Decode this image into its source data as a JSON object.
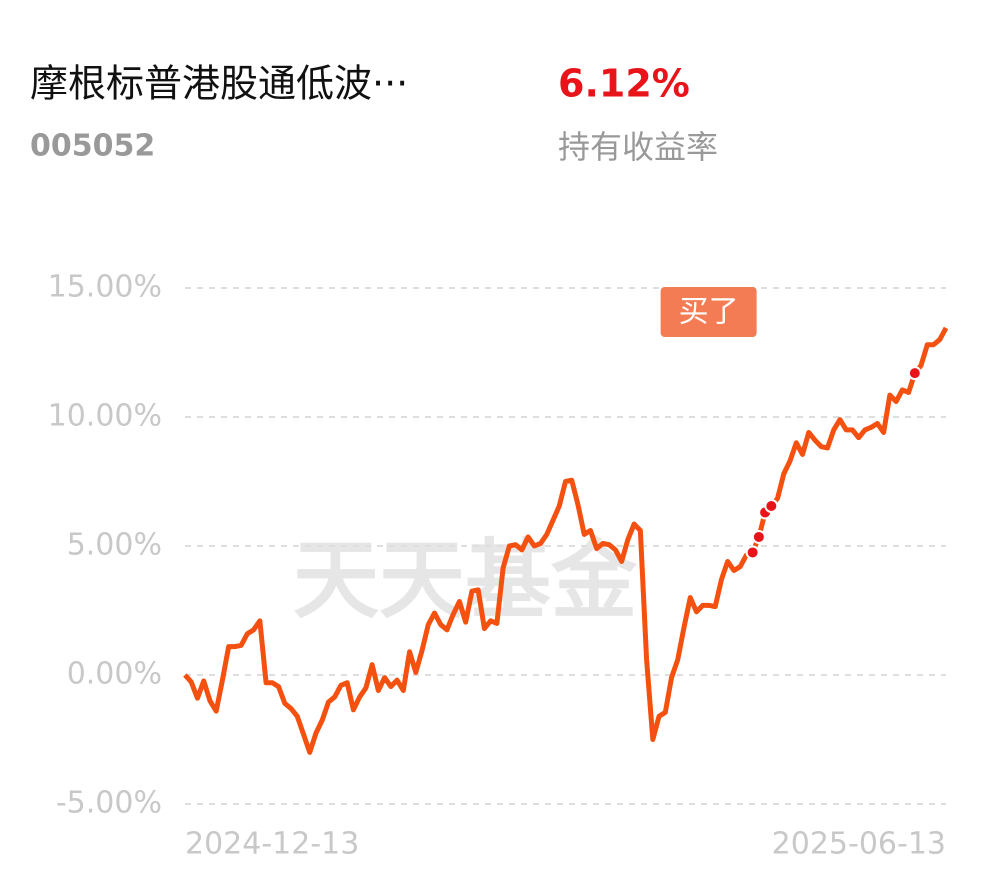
{
  "header": {
    "title": "摩根标普港股通低波···",
    "code": "005052",
    "return": "6.12%",
    "return_label": "持有收益率"
  },
  "chart_data": {
    "type": "line",
    "watermark": "天天基金",
    "annotation": "买了",
    "categories": [
      "2024-12-13",
      null,
      null,
      null,
      null,
      null,
      null,
      null,
      null,
      null,
      null,
      null,
      null,
      null,
      null,
      null,
      null,
      null,
      null,
      null,
      null,
      null,
      null,
      null,
      null,
      null,
      null,
      null,
      null,
      null,
      null,
      null,
      null,
      null,
      null,
      null,
      null,
      null,
      null,
      null,
      null,
      null,
      null,
      null,
      null,
      null,
      null,
      null,
      null,
      null,
      null,
      null,
      null,
      null,
      null,
      null,
      null,
      null,
      null,
      null,
      null,
      null,
      null,
      null,
      null,
      null,
      null,
      null,
      null,
      null,
      null,
      null,
      null,
      null,
      null,
      null,
      null,
      null,
      null,
      null,
      null,
      null,
      null,
      null,
      null,
      null,
      null,
      null,
      null,
      null,
      null,
      null,
      null,
      null,
      null,
      null,
      null,
      null,
      null,
      null,
      null,
      null,
      null,
      null,
      null,
      null,
      null,
      null,
      null,
      null,
      null,
      null,
      null,
      null,
      null,
      null,
      null,
      null,
      null,
      null,
      null,
      null,
      "2025-06-13"
    ],
    "series": [
      {
        "color": "#f4500f",
        "values": [
          0,
          -0.27,
          -0.9,
          -0.23,
          -1.0,
          -1.4,
          -0.2,
          1.1,
          1.1,
          1.15,
          1.6,
          1.75,
          2.1,
          -0.3,
          -0.3,
          -0.45,
          -1.1,
          -1.3,
          -1.6,
          -2.3,
          -3.0,
          -2.25,
          -1.75,
          -1.05,
          -0.85,
          -0.4,
          -0.3,
          -1.35,
          -0.85,
          -0.5,
          0.4,
          -0.6,
          -0.1,
          -0.45,
          -0.2,
          -0.6,
          0.9,
          0.1,
          0.95,
          1.95,
          2.4,
          1.95,
          1.75,
          2.35,
          2.85,
          2.05,
          3.25,
          3.3,
          1.8,
          2.1,
          2.0,
          4.15,
          5.0,
          5.05,
          4.85,
          5.35,
          5.0,
          5.1,
          5.45,
          6.0,
          6.55,
          7.5,
          7.55,
          6.6,
          5.45,
          5.6,
          4.9,
          5.1,
          5.05,
          4.85,
          4.4,
          5.25,
          5.85,
          5.6,
          0.6,
          -2.5,
          -1.6,
          -1.45,
          -0.1,
          0.6,
          1.85,
          3.0,
          2.45,
          2.7,
          2.7,
          2.65,
          3.7,
          4.4,
          4.05,
          4.2,
          4.65,
          4.75,
          5.35,
          6.3,
          6.55,
          6.85,
          7.8,
          8.3,
          9.0,
          8.55,
          9.4,
          9.1,
          8.85,
          8.8,
          9.5,
          9.9,
          9.5,
          9.5,
          9.2,
          9.5,
          9.6,
          9.75,
          9.4,
          10.85,
          10.6,
          11.05,
          10.95,
          11.7,
          12.0,
          12.8,
          12.8,
          13.0,
          13.45
        ]
      }
    ],
    "buy_points": [
      91,
      92,
      93,
      94,
      117
    ],
    "ylim": [
      -5,
      15
    ],
    "yticks": [
      {
        "value": 15,
        "label": "15.00%"
      },
      {
        "value": 10,
        "label": "10.00%"
      },
      {
        "value": 5,
        "label": "5.00%"
      },
      {
        "value": 0,
        "label": "0.00%"
      },
      {
        "value": -5,
        "label": "-5.00%"
      }
    ],
    "grid": true
  }
}
